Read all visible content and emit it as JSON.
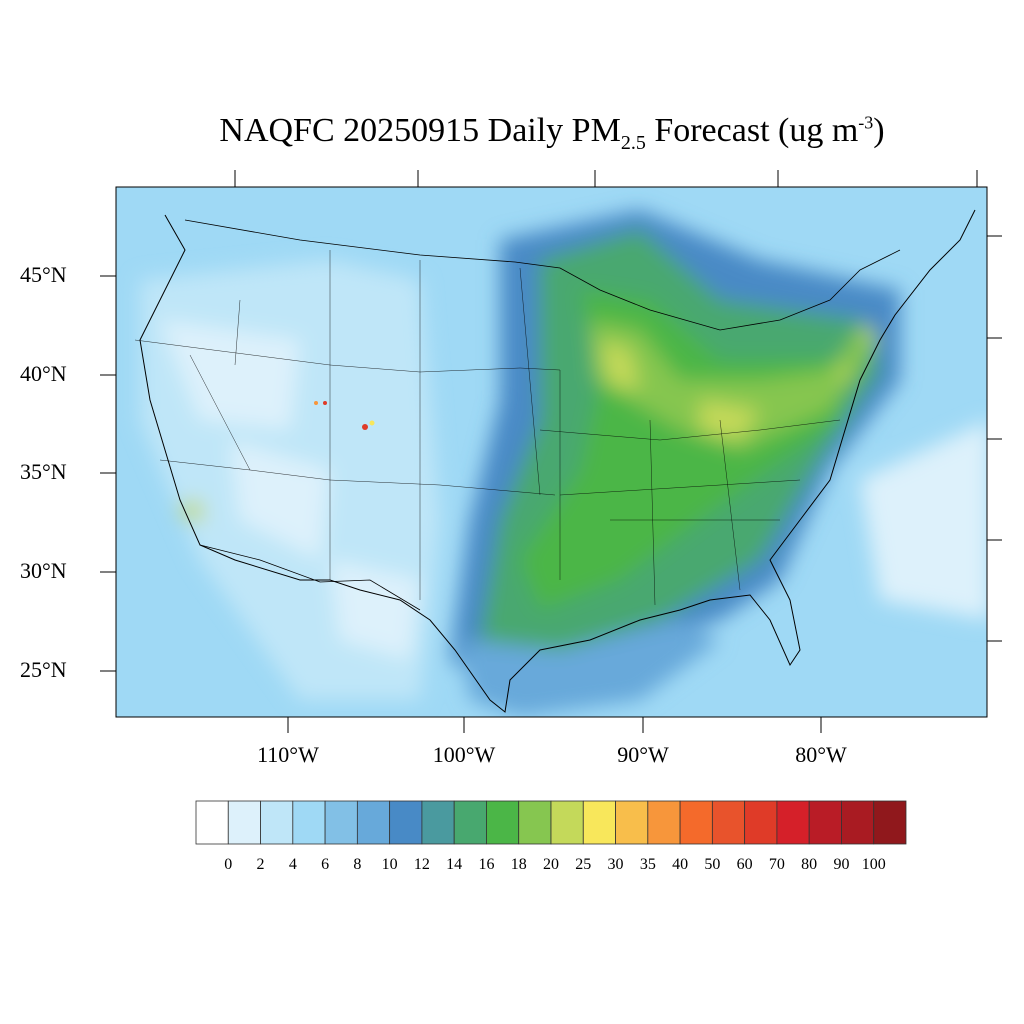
{
  "title": {
    "prefix": "NAQFC 20250915 Daily PM",
    "subscript": "2.5",
    "middle": " Forecast (ug m",
    "superscript": "-3",
    "suffix": ")"
  },
  "map": {
    "projection": "lambert-conformal",
    "region": "CONUS",
    "lat_labels": [
      "45°N",
      "40°N",
      "35°N",
      "30°N",
      "25°N"
    ],
    "lon_labels": [
      "110°W",
      "100°W",
      "90°W",
      "80°W"
    ]
  },
  "colorbar": {
    "labels": [
      "0",
      "2",
      "4",
      "6",
      "8",
      "10",
      "12",
      "14",
      "16",
      "18",
      "20",
      "25",
      "30",
      "35",
      "40",
      "50",
      "60",
      "70",
      "80",
      "90",
      "100"
    ],
    "colors": [
      "#ffffff",
      "#ddf1fb",
      "#bfe6f8",
      "#9fd9f5",
      "#82c0e6",
      "#67a9da",
      "#488ac6",
      "#4a9a9f",
      "#48a86f",
      "#4bb647",
      "#86c650",
      "#c4d95a",
      "#f8e75b",
      "#f8be4b",
      "#f7963b",
      "#f46a2b",
      "#e8532c",
      "#df3b28",
      "#d52029",
      "#b91c26",
      "#a91b22",
      "#90181c"
    ]
  }
}
